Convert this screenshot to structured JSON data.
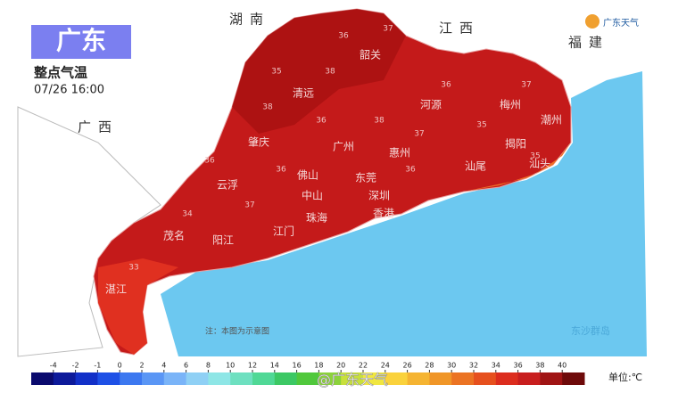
{
  "header": {
    "title": "广东",
    "subtitle": "整点气温",
    "time": "07/26 16:00",
    "logo": "广东天气"
  },
  "regions": [
    "湖南",
    "江西",
    "福建",
    "广西"
  ],
  "cities": [
    "韶关",
    "清远",
    "河源",
    "梅州",
    "潮州",
    "肇庆",
    "广州",
    "惠州",
    "揭阳",
    "汕头",
    "汕尾",
    "云浮",
    "佛山",
    "东莞",
    "深圳",
    "中山",
    "珠海",
    "香港",
    "茂名",
    "阳江",
    "江门",
    "湛江"
  ],
  "station_values": [
    36,
    37,
    38,
    35,
    36,
    37,
    38,
    36,
    35,
    37,
    36,
    38,
    34,
    36,
    35,
    33,
    37,
    36
  ],
  "islands": "东沙群岛",
  "note": "注：本图为示意图",
  "watermark": "@广东天气",
  "legend": {
    "ticks": [
      -4,
      -2,
      -1,
      0,
      2,
      4,
      6,
      8,
      10,
      12,
      14,
      16,
      18,
      20,
      22,
      24,
      26,
      28,
      30,
      32,
      34,
      36,
      38,
      40
    ],
    "colors": [
      "#0a0a6e",
      "#0d1a9a",
      "#1230c8",
      "#1e50e6",
      "#3c78f0",
      "#5a96f5",
      "#7ab4f8",
      "#8fd0f5",
      "#8ee6e6",
      "#6ee0c0",
      "#50d896",
      "#3cc864",
      "#50c83c",
      "#8cd23c",
      "#c8e03c",
      "#f0e640",
      "#fad23c",
      "#f5b432",
      "#f09628",
      "#eb7323",
      "#e6501e",
      "#dc2d1e",
      "#c81e1e",
      "#a01414",
      "#6e0a0a"
    ],
    "unit": "单位:℃"
  }
}
